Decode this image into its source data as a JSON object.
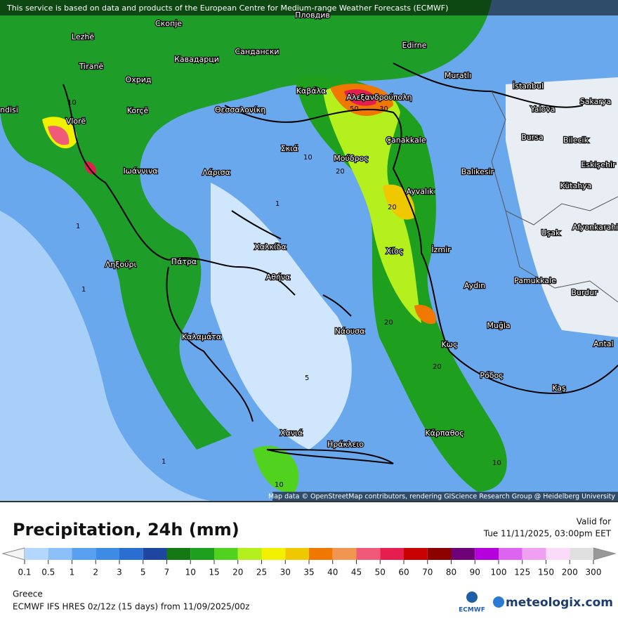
{
  "attribution_top": "This service is based on data and products of the European Centre for Medium-range Weather Forecasts (ECMWF)",
  "attribution_map": "Map data © OpenStreetMap contributors, rendering GIScience Research Group @ Heidelberg University",
  "places": [
    "Пловдив",
    "Lezhë",
    "Скопје",
    "Tiranë",
    "Кавадарци",
    "Сандански",
    "Edirne",
    "Охрид",
    "Korçë",
    "Vlorë",
    "Καβάλα",
    "Αλεξανδρούπολη",
    "Muratlı",
    "İstanbul",
    "Θεσσαλονίκη",
    "Yalova",
    "Sakarya",
    "Çanakkale",
    "Bursa",
    "Bilecik",
    "Σκιά",
    "Ιωάννινα",
    "Λάρισα",
    "Μούδρος",
    "Balıkesir",
    "Eskişehir",
    "Kütahya",
    "Ayvalık",
    "Uşak",
    "Afyonkarahisar",
    "Χαλκίδα",
    "Χίος",
    "İzmir",
    "Ληξούρι",
    "Πάτρα",
    "Αθήνα",
    "Pamukkale",
    "Aydın",
    "Burdur",
    "Muğla",
    "Καλαμάτα",
    "Νάουσα",
    "Κως",
    "Antal",
    "Ρόδος",
    "Kaş",
    "Χανιά",
    "Ηράκλειο",
    "Κάρπαθος",
    "ndisi"
  ],
  "contour_labels": [
    "10",
    "50",
    "30",
    "10",
    "20",
    "20",
    "1",
    "1",
    "20",
    "20",
    "10",
    "10",
    "1",
    "5",
    "1"
  ],
  "title": "Precipitation, 24h (mm)",
  "valid_label": "Valid for",
  "valid_time": "Tue 11/11/2025, 03:00pm EET",
  "legend": {
    "ticks": [
      "0.1",
      "0.5",
      "1",
      "2",
      "3",
      "5",
      "7",
      "10",
      "15",
      "20",
      "25",
      "30",
      "35",
      "40",
      "45",
      "50",
      "60",
      "70",
      "80",
      "90",
      "100",
      "125",
      "150",
      "200",
      "300"
    ],
    "colors": [
      "#b4d7ff",
      "#8cc0f8",
      "#5aa0f0",
      "#3c8ce6",
      "#2a6ed2",
      "#1e46a0",
      "#147814",
      "#1ea01e",
      "#50d21e",
      "#b4f01e",
      "#f0f000",
      "#f0c800",
      "#f07800",
      "#f09650",
      "#f05a78",
      "#e61e50",
      "#c80000",
      "#8c0000",
      "#6e0078",
      "#b400dc",
      "#dc64f0",
      "#f0a0f0",
      "#fadcfa",
      "#e0e0e0"
    ]
  },
  "region": "Greece",
  "model_info": "ECMWF IFS HRES 0z/12z (15 days) from 11/09/2025/00z",
  "logo_ecmwf": "ECMWF",
  "logo_meteologix": "meteologix.com"
}
